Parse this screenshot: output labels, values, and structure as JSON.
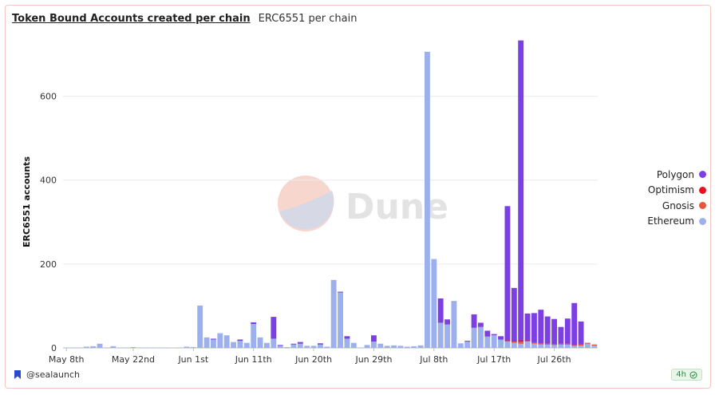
{
  "header": {
    "title": "Token Bound Accounts created per chain",
    "subtitle": "ERC6551 per chain"
  },
  "footer": {
    "author": "@sealaunch",
    "refresh": "4h"
  },
  "watermark": "Dune",
  "colors": {
    "Polygon": "#7b3fe4",
    "Optimism": "#e8101f",
    "Gnosis": "#e8553a",
    "Ethereum": "#9cb0ee"
  },
  "chart_data": {
    "type": "bar",
    "stacked": true,
    "title": "Token Bound Accounts created per chain",
    "ylabel": "ERC6551 accounts",
    "xlabel": "",
    "ylim": [
      0,
      740
    ],
    "yticks": [
      0,
      200,
      400,
      600
    ],
    "xticks": [
      "May 8th",
      "May 22nd",
      "Jun 1st",
      "Jun 11th",
      "Jun 20th",
      "Jun 29th",
      "Jul 8th",
      "Jul 17th",
      "Jul 26th"
    ],
    "xtick_index": [
      0,
      10,
      19,
      28,
      37,
      46,
      55,
      64,
      73
    ],
    "legend_position": "right",
    "grid": true,
    "series": [
      {
        "name": "Ethereum",
        "values": [
          1,
          1,
          1,
          3,
          4,
          10,
          1,
          4,
          1,
          1,
          2,
          1,
          1,
          1,
          1,
          1,
          0,
          1,
          3,
          2,
          101,
          25,
          20,
          35,
          30,
          14,
          17,
          12,
          57,
          25,
          12,
          22,
          5,
          2,
          8,
          10,
          5,
          5,
          8,
          3,
          162,
          132,
          22,
          12,
          1,
          7,
          15,
          10,
          5,
          6,
          5,
          3,
          4,
          6,
          706,
          212,
          60,
          56,
          112,
          11,
          15,
          48,
          50,
          27,
          30,
          20,
          15,
          12,
          10,
          15,
          10,
          8,
          8,
          7,
          8,
          8,
          5,
          6,
          10,
          6
        ]
      },
      {
        "name": "Gnosis",
        "values": [
          0,
          0,
          0,
          0,
          0,
          0,
          0,
          0,
          0,
          0,
          0,
          0,
          0,
          0,
          0,
          0,
          0,
          0,
          0,
          0,
          0,
          0,
          0,
          0,
          0,
          0,
          0,
          0,
          0,
          0,
          0,
          0,
          0,
          0,
          0,
          0,
          0,
          0,
          0,
          0,
          0,
          0,
          0,
          0,
          0,
          0,
          0,
          0,
          0,
          0,
          0,
          0,
          0,
          0,
          0,
          0,
          0,
          0,
          0,
          0,
          0,
          0,
          0,
          0,
          0,
          0,
          2,
          3,
          5,
          2,
          2,
          2,
          1,
          1,
          1,
          1,
          1,
          1,
          1,
          1
        ]
      },
      {
        "name": "Optimism",
        "values": [
          0,
          0,
          0,
          0,
          0,
          0,
          0,
          0,
          0,
          0,
          0,
          0,
          0,
          0,
          0,
          0,
          0,
          0,
          0,
          0,
          0,
          0,
          0,
          0,
          0,
          0,
          0,
          0,
          0,
          0,
          0,
          0,
          0,
          0,
          0,
          0,
          0,
          0,
          0,
          0,
          0,
          0,
          0,
          0,
          0,
          0,
          0,
          0,
          0,
          0,
          0,
          0,
          0,
          0,
          0,
          0,
          0,
          0,
          0,
          0,
          0,
          0,
          0,
          0,
          0,
          0,
          1,
          2,
          3,
          1,
          1,
          1,
          1,
          1,
          1,
          1,
          1,
          1,
          1,
          1
        ]
      },
      {
        "name": "Polygon",
        "values": [
          0,
          0,
          0,
          0,
          0,
          0,
          0,
          0,
          0,
          0,
          0,
          0,
          0,
          0,
          0,
          0,
          0,
          0,
          0,
          0,
          0,
          0,
          2,
          0,
          0,
          0,
          3,
          0,
          4,
          0,
          0,
          52,
          2,
          0,
          2,
          4,
          0,
          0,
          3,
          0,
          0,
          2,
          6,
          0,
          0,
          0,
          15,
          0,
          0,
          0,
          0,
          0,
          0,
          0,
          0,
          0,
          58,
          12,
          0,
          0,
          2,
          32,
          10,
          14,
          3,
          8,
          320,
          126,
          715,
          64,
          70,
          80,
          65,
          60,
          40,
          60,
          100,
          55,
          0,
          0
        ]
      }
    ]
  },
  "legend": [
    "Polygon",
    "Optimism",
    "Gnosis",
    "Ethereum"
  ]
}
